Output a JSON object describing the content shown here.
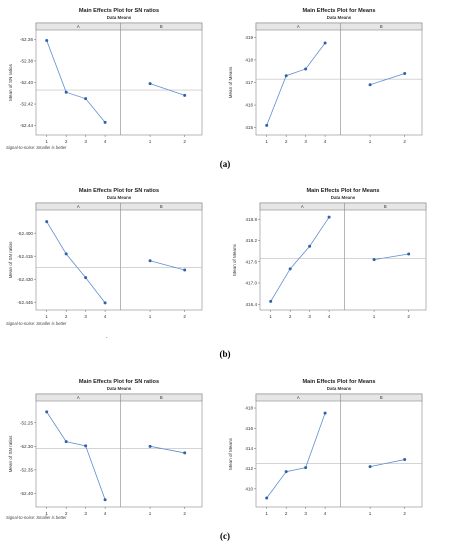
{
  "captions": [
    "(a)",
    "(b)",
    "(c)"
  ],
  "note": "Signal-to-noise: Smaller is better",
  "misc": {
    "stray_mark": "."
  },
  "chart_data": [
    {
      "type": "line",
      "title": "Main Effects Plot for SN ratios",
      "subtitle": "Data Means",
      "ylabel": "Mean of SN ratios",
      "ylim": [
        -52.445,
        -52.355
      ],
      "yticks": [
        -52.36,
        -52.38,
        -52.4,
        -52.42,
        -52.44
      ],
      "yticklabels": [
        "-52.36",
        "-52.38",
        "-52.40",
        "-52.42",
        "-52.44"
      ],
      "grand_mean": -52.407,
      "grid": false,
      "panels": [
        {
          "label": "A",
          "categories": [
            "1",
            "2",
            "3",
            "4"
          ],
          "values": [
            -52.361,
            -52.409,
            -52.415,
            -52.437
          ]
        },
        {
          "label": "B",
          "categories": [
            "1",
            "2"
          ],
          "values": [
            -52.401,
            -52.412
          ]
        }
      ],
      "color": "#5f8fd1"
    },
    {
      "type": "line",
      "title": "Main Effects Plot for Means",
      "subtitle": "Data Means",
      "ylabel": "Mean of Means",
      "ylim": [
        414.85,
        419.15
      ],
      "yticks": [
        415,
        416,
        417,
        418,
        419
      ],
      "yticklabels": [
        "415",
        "416",
        "417",
        "418",
        "419"
      ],
      "grand_mean": 417.15,
      "grid": false,
      "panels": [
        {
          "label": "A",
          "categories": [
            "1",
            "2",
            "3",
            "4"
          ],
          "values": [
            415.1,
            417.3,
            417.6,
            418.75
          ]
        },
        {
          "label": "B",
          "categories": [
            "1",
            "2"
          ],
          "values": [
            416.9,
            417.4
          ]
        }
      ],
      "color": "#5f8fd1"
    },
    {
      "type": "line",
      "title": "Main Effects Plot for SN ratios",
      "subtitle": "Data Means",
      "ylabel": "Mean of SN ratios",
      "ylim": [
        -52.4475,
        -52.3875
      ],
      "yticks": [
        -52.4,
        -52.415,
        -52.43,
        -52.445
      ],
      "yticklabels": [
        "-52.400",
        "-52.415",
        "-52.430",
        "-52.445"
      ],
      "grand_mean": -52.4225,
      "grid": false,
      "panels": [
        {
          "label": "A",
          "categories": [
            "1",
            "2",
            "3",
            "4"
          ],
          "values": [
            -52.3925,
            -52.4135,
            -52.429,
            -52.4455
          ]
        },
        {
          "label": "B",
          "categories": [
            "1",
            "2"
          ],
          "values": [
            -52.418,
            -52.424
          ]
        }
      ],
      "color": "#5f8fd1"
    },
    {
      "type": "line",
      "title": "Main Effects Plot for Means",
      "subtitle": "Data Means",
      "ylabel": "Mean of Means",
      "ylim": [
        416.35,
        418.95
      ],
      "yticks": [
        416.4,
        417.0,
        417.6,
        418.2,
        418.8
      ],
      "yticklabels": [
        "416.4",
        "417.0",
        "417.6",
        "418.2",
        "418.8"
      ],
      "grand_mean": 417.7,
      "grid": false,
      "panels": [
        {
          "label": "A",
          "categories": [
            "1",
            "2",
            "3",
            "4"
          ],
          "values": [
            416.48,
            417.4,
            418.04,
            418.86
          ]
        },
        {
          "label": "B",
          "categories": [
            "1",
            "2"
          ],
          "values": [
            417.66,
            417.82
          ]
        }
      ],
      "color": "#5f8fd1"
    },
    {
      "type": "line",
      "title": "Main Effects Plot for SN ratios",
      "subtitle": "Data Means",
      "ylabel": "Mean of SN ratios",
      "ylim": [
        -52.42,
        -52.2125
      ],
      "yticks": [
        -52.25,
        -52.3,
        -52.35,
        -52.4
      ],
      "yticklabels": [
        "-52.25",
        "-52.30",
        "-52.35",
        "-52.40"
      ],
      "grand_mean": -52.305,
      "grid": false,
      "panels": [
        {
          "label": "A",
          "categories": [
            "1",
            "2",
            "3",
            "4"
          ],
          "values": [
            -52.227,
            -52.29,
            -52.299,
            -52.413
          ]
        },
        {
          "label": "B",
          "categories": [
            "1",
            "2"
          ],
          "values": [
            -52.3,
            -52.314
          ]
        }
      ],
      "color": "#5f8fd1"
    },
    {
      "type": "line",
      "title": "Main Effects Plot for Means",
      "subtitle": "Data Means",
      "ylabel": "Mean of Means",
      "ylim": [
        408.6,
        418.3
      ],
      "yticks": [
        410,
        412,
        414,
        416,
        418
      ],
      "yticklabels": [
        "410",
        "412",
        "414",
        "416",
        "418"
      ],
      "grand_mean": 412.5,
      "grid": false,
      "panels": [
        {
          "label": "A",
          "categories": [
            "1",
            "2",
            "3",
            "4"
          ],
          "values": [
            409.1,
            411.7,
            412.1,
            417.5
          ]
        },
        {
          "label": "B",
          "categories": [
            "1",
            "2"
          ],
          "values": [
            412.2,
            412.9
          ]
        }
      ],
      "color": "#5f8fd1"
    }
  ]
}
